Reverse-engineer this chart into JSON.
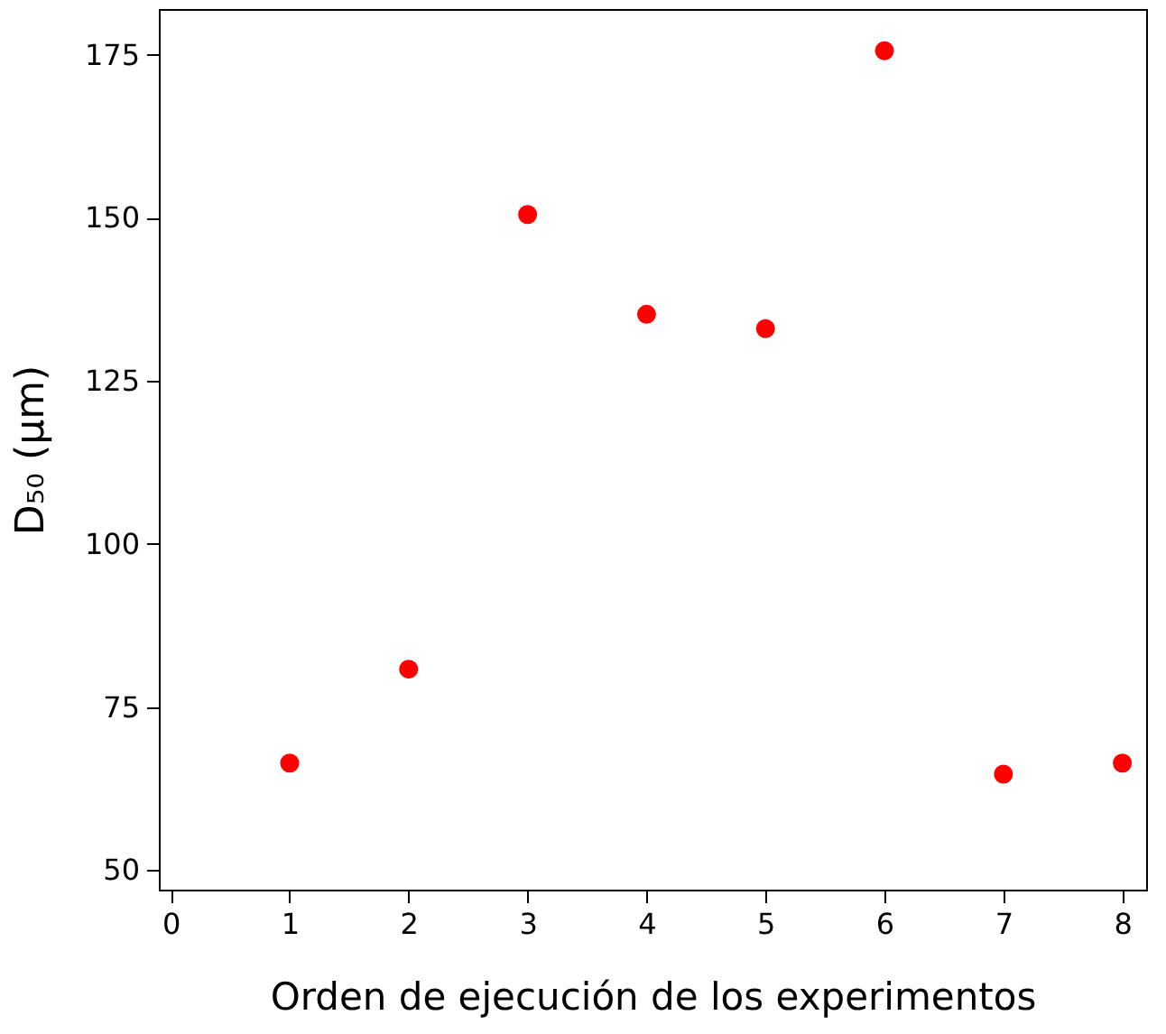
{
  "chart_data": {
    "type": "scatter",
    "xlabel": "Orden de ejecución de los experimentos",
    "ylabel": "D₅₀ (µm)",
    "x": [
      1,
      2,
      3,
      4,
      5,
      6,
      7,
      8
    ],
    "series": [
      {
        "color": "#ff0000",
        "values": [
          66.4,
          80.8,
          150.5,
          135.2,
          133,
          175.6,
          64.7,
          66.4
        ]
      }
    ],
    "xlim": [
      -0.1,
      8.2
    ],
    "ylim": [
      47,
      182
    ],
    "xticks": [
      0,
      1,
      2,
      3,
      4,
      5,
      6,
      7,
      8
    ],
    "yticks": [
      50,
      75,
      100,
      125,
      150,
      175
    ],
    "marker": "circle",
    "grid": false
  }
}
